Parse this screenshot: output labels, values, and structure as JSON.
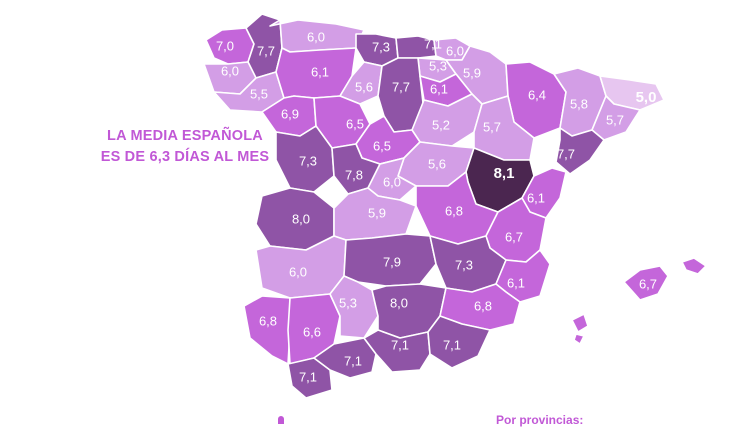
{
  "headline": {
    "line1": "LA MEDIA ESPAÑOLA",
    "line2": "ES DE 6,3 DÍAS AL MES"
  },
  "footer_note": "Por provincias:",
  "palette": {
    "very_dark": "#4b2650",
    "dark": "#8f54a6",
    "medium": "#c466da",
    "light": "#d39ee6",
    "lightest": "#e7c6f0",
    "headline": "#c158d6"
  },
  "provinces": [
    {
      "id": "a-coruna",
      "value": "7,0",
      "shade": "medium"
    },
    {
      "id": "lugo",
      "value": "7,7",
      "shade": "dark"
    },
    {
      "id": "asturias",
      "value": "6,0",
      "shade": "light"
    },
    {
      "id": "cantabria",
      "value": "7,3",
      "shade": "dark"
    },
    {
      "id": "bizkaia",
      "value": "7,1",
      "shade": "dark"
    },
    {
      "id": "gipuzkoa",
      "value": "6,0",
      "shade": "light"
    },
    {
      "id": "alava",
      "value": "5,3",
      "shade": "light"
    },
    {
      "id": "navarra",
      "value": "5,9",
      "shade": "light"
    },
    {
      "id": "pontevedra",
      "value": "6,0",
      "shade": "light"
    },
    {
      "id": "ourense",
      "value": "5,5",
      "shade": "light"
    },
    {
      "id": "leon",
      "value": "6,1",
      "shade": "medium"
    },
    {
      "id": "palencia",
      "value": "5,6",
      "shade": "light"
    },
    {
      "id": "burgos",
      "value": "7,7",
      "shade": "dark"
    },
    {
      "id": "la-rioja",
      "value": "6,1",
      "shade": "medium"
    },
    {
      "id": "huesca",
      "value": "6,4",
      "shade": "medium"
    },
    {
      "id": "lleida",
      "value": "5,8",
      "shade": "light"
    },
    {
      "id": "girona",
      "value": "5,0",
      "shade": "lightest"
    },
    {
      "id": "barcelona",
      "value": "5,7",
      "shade": "light"
    },
    {
      "id": "zamora",
      "value": "6,9",
      "shade": "medium"
    },
    {
      "id": "valladolid",
      "value": "6,5",
      "shade": "medium"
    },
    {
      "id": "soria",
      "value": "5,2",
      "shade": "light"
    },
    {
      "id": "zaragoza",
      "value": "5,7",
      "shade": "light"
    },
    {
      "id": "tarragona",
      "value": "7,7",
      "shade": "dark"
    },
    {
      "id": "segovia",
      "value": "6,5",
      "shade": "medium"
    },
    {
      "id": "salamanca",
      "value": "7,3",
      "shade": "dark"
    },
    {
      "id": "avila",
      "value": "7,8",
      "shade": "dark"
    },
    {
      "id": "guadalajara",
      "value": "5,6",
      "shade": "light"
    },
    {
      "id": "teruel",
      "value": "8,1",
      "shade": "very_dark"
    },
    {
      "id": "madrid",
      "value": "6,0",
      "shade": "light"
    },
    {
      "id": "castellon",
      "value": "6,1",
      "shade": "medium"
    },
    {
      "id": "caceres",
      "value": "8,0",
      "shade": "dark"
    },
    {
      "id": "toledo",
      "value": "5,9",
      "shade": "light"
    },
    {
      "id": "cuenca",
      "value": "6,8",
      "shade": "medium"
    },
    {
      "id": "valencia",
      "value": "6,7",
      "shade": "medium"
    },
    {
      "id": "badajoz",
      "value": "6,0",
      "shade": "light"
    },
    {
      "id": "ciudad-real",
      "value": "7,9",
      "shade": "dark"
    },
    {
      "id": "albacete",
      "value": "7,3",
      "shade": "dark"
    },
    {
      "id": "alicante",
      "value": "6,1",
      "shade": "medium"
    },
    {
      "id": "baleares",
      "value": "6,7",
      "shade": "medium"
    },
    {
      "id": "huelva",
      "value": "6,8",
      "shade": "medium"
    },
    {
      "id": "sevilla",
      "value": "6,6",
      "shade": "medium"
    },
    {
      "id": "cordoba",
      "value": "5,3",
      "shade": "light"
    },
    {
      "id": "jaen",
      "value": "8,0",
      "shade": "dark"
    },
    {
      "id": "murcia",
      "value": "6,8",
      "shade": "medium"
    },
    {
      "id": "cadiz",
      "value": "7,1",
      "shade": "dark"
    },
    {
      "id": "malaga",
      "value": "7,1",
      "shade": "dark"
    },
    {
      "id": "granada",
      "value": "7,1",
      "shade": "dark"
    },
    {
      "id": "almeria",
      "value": "7,1",
      "shade": "dark"
    }
  ]
}
